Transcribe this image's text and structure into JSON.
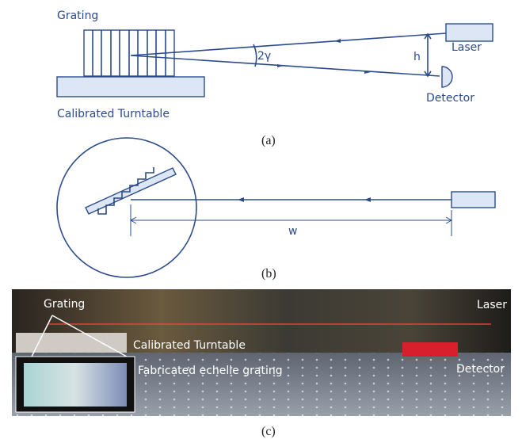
{
  "panel_a": {
    "grating": "Grating",
    "turntable": "Calibrated Turntable",
    "angle": "2γ",
    "height": "h",
    "laser": "Laser",
    "detector": "Detector",
    "caption": "(a)"
  },
  "panel_b": {
    "distance": "w",
    "caption": "(b)"
  },
  "panel_c": {
    "grating": "Grating",
    "laser": "Laser",
    "turntable": "Calibrated Turntable",
    "inset": "Fabricated echelle grating",
    "detector": "Detector",
    "caption": "(c)"
  }
}
